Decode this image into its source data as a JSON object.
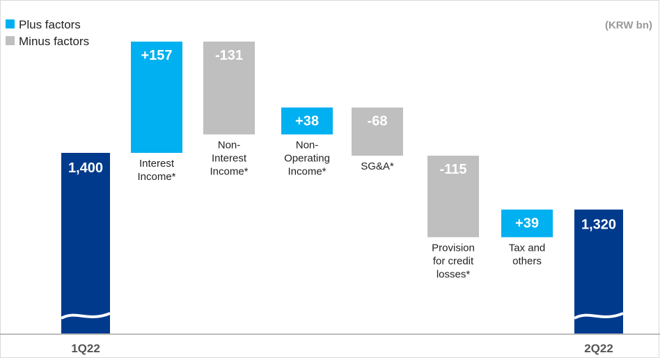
{
  "chart_data": {
    "type": "bar",
    "subtype": "waterfall",
    "unit": "(KRW bn)",
    "legend": {
      "placement": "top-left",
      "items": [
        {
          "label": "Plus factors",
          "color": "#00B0F0"
        },
        {
          "label": "Minus factors",
          "color": "#BFBFBF"
        }
      ]
    },
    "colors": {
      "total": "#003A8C",
      "plus": "#00B0F0",
      "minus": "#BFBFBF"
    },
    "start": {
      "category": "1Q22",
      "value": 1400,
      "label": "1,400"
    },
    "steps": [
      {
        "lines": [
          "Interest",
          "Income*"
        ],
        "delta": 157,
        "label": "+157"
      },
      {
        "lines": [
          "Non-",
          "Interest",
          "Income*"
        ],
        "delta": -131,
        "label": "-131"
      },
      {
        "lines": [
          "Non-",
          "Operating",
          "Income*"
        ],
        "delta": 38,
        "label": "+38"
      },
      {
        "lines": [
          "SG&A*"
        ],
        "delta": -68,
        "label": "-68"
      },
      {
        "lines": [
          "Provision",
          "for credit",
          "losses*"
        ],
        "delta": -115,
        "label": "-115"
      },
      {
        "lines": [
          "Tax and",
          "others"
        ],
        "delta": 39,
        "label": "+39"
      }
    ],
    "end": {
      "category": "2Q22",
      "value": 1320,
      "label": "1,320"
    }
  }
}
